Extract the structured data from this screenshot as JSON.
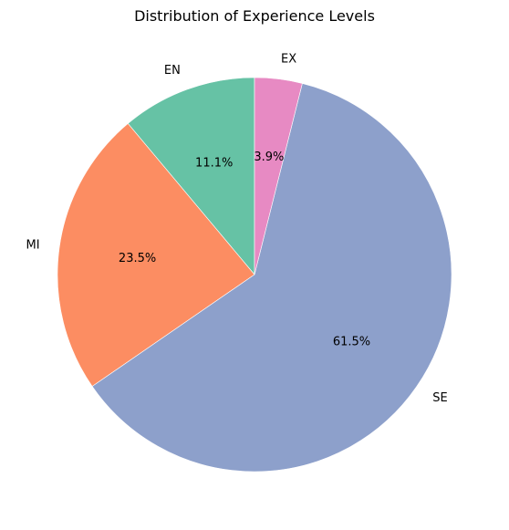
{
  "chart_data": {
    "type": "pie",
    "title": "Distribution of Experience Levels",
    "start_angle_deg": 90,
    "direction": "counterclockwise",
    "slices": [
      {
        "label": "EN",
        "value": 11.1,
        "pct_label": "11.1%",
        "color": "#66c2a5"
      },
      {
        "label": "MI",
        "value": 23.5,
        "pct_label": "23.5%",
        "color": "#fc8d62"
      },
      {
        "label": "SE",
        "value": 61.5,
        "pct_label": "61.5%",
        "color": "#8da0cb"
      },
      {
        "label": "EX",
        "value": 3.9,
        "pct_label": "3.9%",
        "color": "#e78ac3"
      }
    ]
  }
}
